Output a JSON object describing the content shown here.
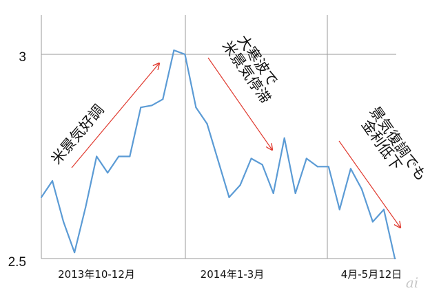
{
  "chart_data": {
    "type": "line",
    "title": "",
    "xlabel": "",
    "ylabel": "",
    "ylim": [
      2.5,
      3.1
    ],
    "yticks": [
      "2.5",
      "3"
    ],
    "period_labels": [
      "2013年10-12月",
      "2014年1-3月",
      "4月-5月12日"
    ],
    "grid": "vertical dividers between periods, horizontal line at 3",
    "series": [
      {
        "color": "#5b9bd5",
        "values": [
          2.65,
          2.69,
          2.59,
          2.515,
          2.625,
          2.75,
          2.71,
          2.75,
          2.75,
          2.87,
          2.875,
          2.89,
          3.01,
          3.0,
          2.87,
          2.83,
          2.74,
          2.65,
          2.68,
          2.745,
          2.73,
          2.66,
          2.795,
          2.66,
          2.745,
          2.725,
          2.725,
          2.62,
          2.72,
          2.67,
          2.59,
          2.62,
          2.5
        ]
      }
    ],
    "annotations": [
      {
        "text": "米景気好調",
        "arrow": "up"
      },
      {
        "text": "大寒波で",
        "arrow": "down"
      },
      {
        "text": "米景気停滞",
        "arrow": "down"
      },
      {
        "text": "景気復調でも",
        "arrow": "down"
      },
      {
        "text": "金利低下",
        "arrow": "down"
      }
    ],
    "arrow_color": "#e03a2f"
  },
  "watermark": "ai"
}
